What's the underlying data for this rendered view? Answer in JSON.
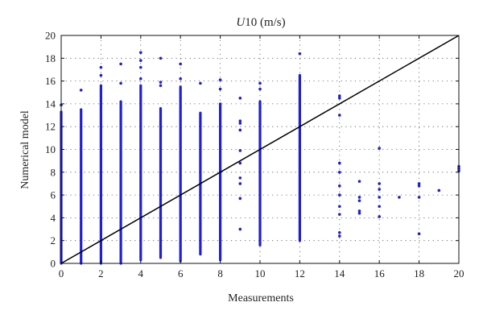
{
  "chart_data": {
    "type": "scatter",
    "title_italic": "U",
    "title_rest": "10 (m/s)",
    "xlabel": "Measurements",
    "ylabel": "Numerical model",
    "xlim": [
      0,
      20
    ],
    "ylim": [
      0,
      20
    ],
    "xticks": [
      0,
      2,
      4,
      6,
      8,
      10,
      12,
      14,
      16,
      18,
      20
    ],
    "yticks": [
      0,
      2,
      4,
      6,
      8,
      10,
      12,
      14,
      16,
      18,
      20
    ],
    "grid": true,
    "colors": {
      "points": "#1f1fd6",
      "reference_line": "#000000"
    },
    "reference_line": {
      "x": [
        0,
        20
      ],
      "y": [
        0,
        20
      ]
    },
    "columns": [
      {
        "x": 0,
        "min": 0.0,
        "max": 13.3,
        "extras": [
          13.9
        ]
      },
      {
        "x": 1,
        "min": 0.0,
        "max": 13.5,
        "extras": [
          15.2
        ]
      },
      {
        "x": 2,
        "min": 0.0,
        "max": 15.6,
        "extras": [
          16.5,
          17.2
        ]
      },
      {
        "x": 3,
        "min": 0.0,
        "max": 14.2,
        "extras": [
          15.8,
          17.5
        ]
      },
      {
        "x": 4,
        "min": 0.3,
        "max": 15.6,
        "extras": [
          16.2,
          17.2,
          17.8,
          18.5
        ]
      },
      {
        "x": 5,
        "min": 0.5,
        "max": 13.6,
        "extras": [
          15.6,
          15.9,
          18.0
        ]
      },
      {
        "x": 6,
        "min": 0.2,
        "max": 15.5,
        "extras": [
          16.2,
          17.5
        ]
      },
      {
        "x": 7,
        "min": 0.8,
        "max": 13.2,
        "extras": [
          15.8
        ]
      },
      {
        "x": 8,
        "min": 0.3,
        "max": 14.0,
        "extras": [
          15.3,
          16.1
        ]
      },
      {
        "x": 10,
        "min": 1.6,
        "max": 14.2,
        "extras": [
          15.3,
          15.8
        ]
      },
      {
        "x": 12,
        "min": 2.0,
        "max": 16.5,
        "extras": [
          18.4
        ]
      }
    ],
    "points": [
      {
        "x": 9,
        "y": 3.0
      },
      {
        "x": 9,
        "y": 5.7
      },
      {
        "x": 9,
        "y": 7.0
      },
      {
        "x": 9,
        "y": 7.5
      },
      {
        "x": 9,
        "y": 8.8
      },
      {
        "x": 9,
        "y": 9.9
      },
      {
        "x": 9,
        "y": 11.7
      },
      {
        "x": 9,
        "y": 12.3
      },
      {
        "x": 9,
        "y": 12.5
      },
      {
        "x": 9,
        "y": 14.5
      },
      {
        "x": 14,
        "y": 2.4
      },
      {
        "x": 14,
        "y": 2.7
      },
      {
        "x": 14,
        "y": 4.3
      },
      {
        "x": 14,
        "y": 5.0
      },
      {
        "x": 14,
        "y": 6.0
      },
      {
        "x": 14,
        "y": 6.8
      },
      {
        "x": 14,
        "y": 8.0
      },
      {
        "x": 14,
        "y": 8.8
      },
      {
        "x": 14,
        "y": 13.0
      },
      {
        "x": 14,
        "y": 14.5
      },
      {
        "x": 14,
        "y": 14.7
      },
      {
        "x": 15,
        "y": 4.4
      },
      {
        "x": 15,
        "y": 4.6
      },
      {
        "x": 15,
        "y": 5.5
      },
      {
        "x": 15,
        "y": 5.8
      },
      {
        "x": 15,
        "y": 7.2
      },
      {
        "x": 16,
        "y": 4.1
      },
      {
        "x": 16,
        "y": 5.0
      },
      {
        "x": 16,
        "y": 5.8
      },
      {
        "x": 16,
        "y": 6.5
      },
      {
        "x": 16,
        "y": 7.0
      },
      {
        "x": 16,
        "y": 10.1
      },
      {
        "x": 17,
        "y": 5.8
      },
      {
        "x": 18,
        "y": 2.6
      },
      {
        "x": 18,
        "y": 5.8
      },
      {
        "x": 18,
        "y": 6.8
      },
      {
        "x": 18,
        "y": 7.0
      },
      {
        "x": 19,
        "y": 6.4
      },
      {
        "x": 20,
        "y": 8.1
      },
      {
        "x": 20,
        "y": 8.3
      },
      {
        "x": 20,
        "y": 8.5
      }
    ]
  }
}
